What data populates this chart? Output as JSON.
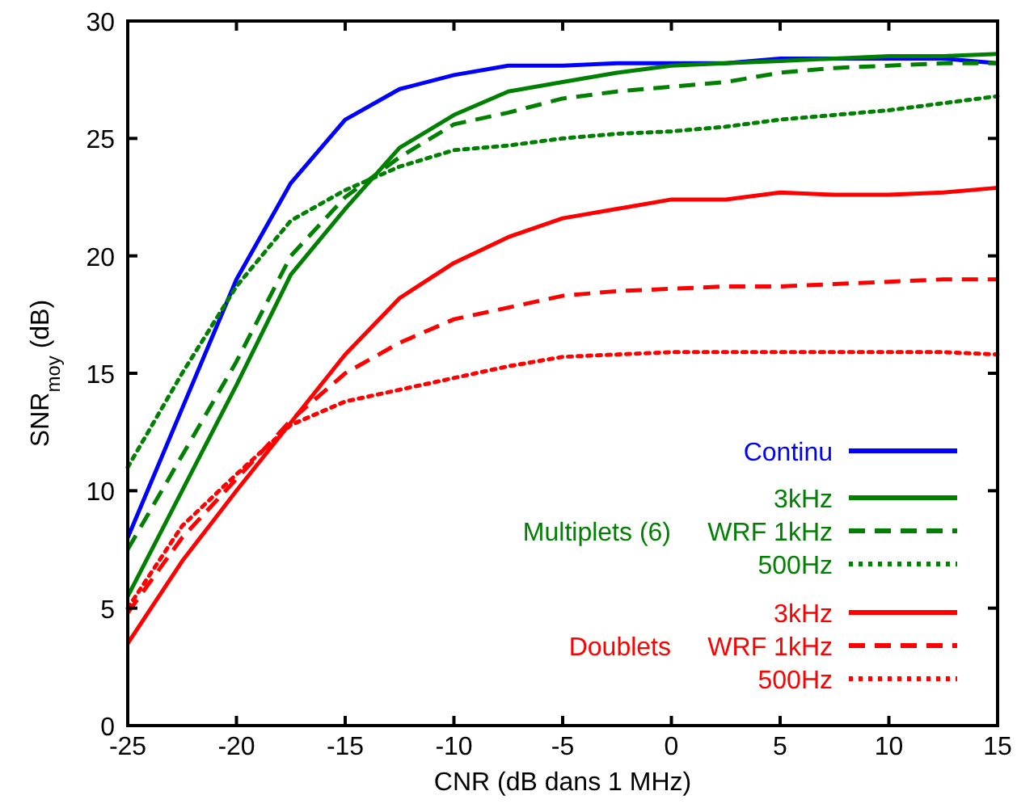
{
  "chart_data": {
    "type": "line",
    "xlabel": "CNR (dB dans 1 MHz)",
    "ylabel": "SNR$_{moy}$ (dB)",
    "x": [
      -25,
      -22.5,
      -20,
      -17.5,
      -15,
      -12.5,
      -10,
      -7.5,
      -5,
      -2.5,
      0,
      2.5,
      5,
      7.5,
      10,
      12.5,
      15
    ],
    "xlim": [
      -25,
      15
    ],
    "xticks": [
      -25,
      -20,
      -15,
      -10,
      -5,
      0,
      5,
      10,
      15
    ],
    "ylim": [
      0,
      30
    ],
    "yticks": [
      0,
      5,
      10,
      15,
      20,
      25,
      30
    ],
    "grid": false,
    "legend": "bottom right",
    "annotations": [
      "Multiplets (6)",
      "Doublets"
    ],
    "series": [
      {
        "name": "Continu",
        "color": "#0000ff",
        "line_style": "solid",
        "values": [
          8,
          13.5,
          19,
          23.1,
          25.8,
          27.1,
          27.7,
          28.1,
          28.1,
          28.2,
          28.2,
          28.2,
          28.4,
          28.4,
          28.4,
          28.4,
          28.2
        ]
      },
      {
        "name": "3kHz",
        "color": "#008000",
        "line_style": "solid",
        "values": [
          5.5,
          10,
          14.5,
          19.2,
          22,
          24.6,
          26,
          27,
          27.4,
          27.8,
          28.1,
          28.2,
          28.3,
          28.4,
          28.5,
          28.5,
          28.6
        ]
      },
      {
        "name": "WRF 1kHz",
        "color": "#008000",
        "line_style": "dashed",
        "values": [
          7.5,
          11.5,
          15.5,
          20,
          22.5,
          24.2,
          25.6,
          26.1,
          26.7,
          27,
          27.2,
          27.4,
          27.8,
          28,
          28.1,
          28.2,
          28.2
        ]
      },
      {
        "name": "500Hz",
        "color": "#008000",
        "line_style": "dotted",
        "values": [
          11,
          15,
          18.7,
          21.5,
          22.8,
          23.8,
          24.5,
          24.7,
          25,
          25.2,
          25.3,
          25.5,
          25.8,
          26,
          26.2,
          26.5,
          26.8
        ]
      },
      {
        "name": "3kHz",
        "color": "#ff0000",
        "line_style": "solid",
        "values": [
          3.5,
          7,
          10,
          12.9,
          15.8,
          18.2,
          19.7,
          20.8,
          21.6,
          22,
          22.4,
          22.4,
          22.7,
          22.6,
          22.6,
          22.7,
          22.9
        ]
      },
      {
        "name": "WRF 1kHz",
        "color": "#ff0000",
        "line_style": "dashed",
        "values": [
          4.8,
          8,
          10.5,
          13,
          15,
          16.3,
          17.3,
          17.8,
          18.3,
          18.5,
          18.6,
          18.7,
          18.7,
          18.8,
          18.9,
          19,
          19
        ]
      },
      {
        "name": "500Hz",
        "color": "#ff0000",
        "line_style": "dotted",
        "values": [
          5,
          8.5,
          10.7,
          12.8,
          13.8,
          14.3,
          14.8,
          15.3,
          15.7,
          15.8,
          15.9,
          15.9,
          15.9,
          15.9,
          15.9,
          15.9,
          15.8
        ]
      }
    ]
  }
}
